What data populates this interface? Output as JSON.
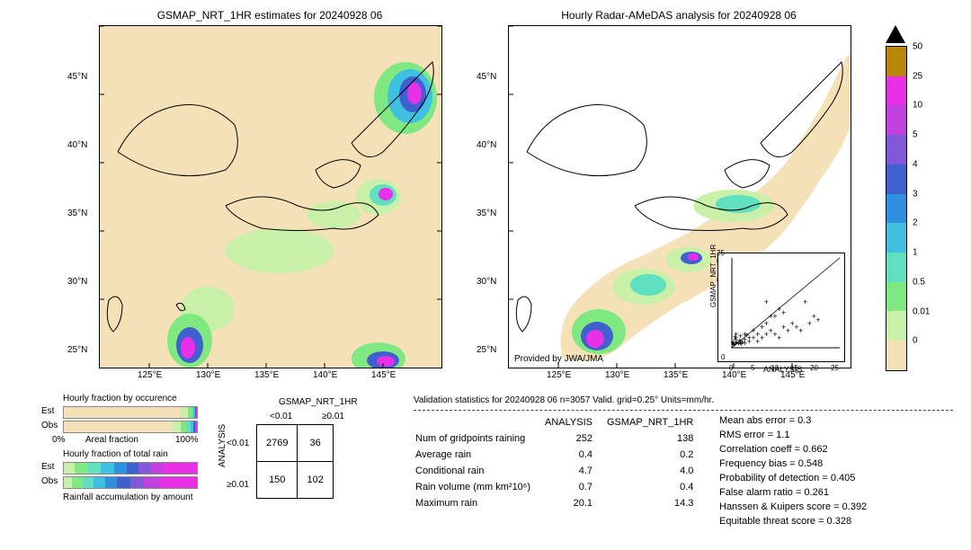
{
  "map_left": {
    "title": "GSMAP_NRT_1HR estimates for 20240928 06",
    "x_ticks": [
      "125°E",
      "130°E",
      "135°E",
      "140°E",
      "145°E"
    ],
    "y_ticks": [
      "25°N",
      "30°N",
      "35°N",
      "40°N",
      "45°N"
    ],
    "bg_color": "#f5e1b8"
  },
  "map_right": {
    "title": "Hourly Radar-AMeDAS analysis for 20240928 06",
    "x_ticks": [
      "125°E",
      "130°E",
      "135°E",
      "140°E",
      "145°E"
    ],
    "y_ticks": [
      "25°N",
      "30°N",
      "35°N",
      "40°N",
      "45°N"
    ],
    "footer": "Provided by JWA/JMA",
    "bg_color": "#ffffff",
    "coverage_color": "#f5e1b8"
  },
  "colorbar": {
    "segments": [
      {
        "color": "#000000",
        "is_triangle": true
      },
      {
        "color": "#b8860b"
      },
      {
        "color": "#e730e7"
      },
      {
        "color": "#c040e0"
      },
      {
        "color": "#8058d8"
      },
      {
        "color": "#4060d0"
      },
      {
        "color": "#3090e0"
      },
      {
        "color": "#40c0e0"
      },
      {
        "color": "#60e0c0"
      },
      {
        "color": "#80e880"
      },
      {
        "color": "#c8f0a8"
      },
      {
        "color": "#f5e1b8"
      }
    ],
    "ticks": [
      "50",
      "25",
      "10",
      "5",
      "4",
      "3",
      "2",
      "1",
      "0.5",
      "0.01",
      "0"
    ]
  },
  "fraction_charts": {
    "title1": "Hourly fraction by occurence",
    "title2": "Hourly fraction of total rain",
    "footer2": "Rainfall accumulation by amount",
    "x_axis_label": "Areal fraction",
    "x_min": "0%",
    "x_max": "100%",
    "row_label_est": "Est",
    "row_label_obs": "Obs",
    "occurrence_est": [
      {
        "color": "#f5e1b8",
        "pct": 88
      },
      {
        "color": "#c8f0a8",
        "pct": 5
      },
      {
        "color": "#80e880",
        "pct": 3
      },
      {
        "color": "#60e0c0",
        "pct": 1.5
      },
      {
        "color": "#40c0e0",
        "pct": 1
      },
      {
        "color": "#4060d0",
        "pct": 0.8
      },
      {
        "color": "#e730e7",
        "pct": 0.7
      }
    ],
    "occurrence_obs": [
      {
        "color": "#f5e1b8",
        "pct": 82
      },
      {
        "color": "#c8f0a8",
        "pct": 6
      },
      {
        "color": "#80e880",
        "pct": 4
      },
      {
        "color": "#60e0c0",
        "pct": 3
      },
      {
        "color": "#40c0e0",
        "pct": 2
      },
      {
        "color": "#4060d0",
        "pct": 1.5
      },
      {
        "color": "#e730e7",
        "pct": 1.5
      }
    ],
    "totalrain_est": [
      {
        "color": "#c8f0a8",
        "pct": 8
      },
      {
        "color": "#80e880",
        "pct": 10
      },
      {
        "color": "#60e0c0",
        "pct": 10
      },
      {
        "color": "#40c0e0",
        "pct": 10
      },
      {
        "color": "#3090e0",
        "pct": 9
      },
      {
        "color": "#4060d0",
        "pct": 9
      },
      {
        "color": "#8058d8",
        "pct": 9
      },
      {
        "color": "#c040e0",
        "pct": 10
      },
      {
        "color": "#e730e7",
        "pct": 25
      }
    ],
    "totalrain_obs": [
      {
        "color": "#c8f0a8",
        "pct": 6
      },
      {
        "color": "#80e880",
        "pct": 8
      },
      {
        "color": "#60e0c0",
        "pct": 8
      },
      {
        "color": "#40c0e0",
        "pct": 9
      },
      {
        "color": "#3090e0",
        "pct": 9
      },
      {
        "color": "#4060d0",
        "pct": 10
      },
      {
        "color": "#8058d8",
        "pct": 10
      },
      {
        "color": "#c040e0",
        "pct": 12
      },
      {
        "color": "#e730e7",
        "pct": 28
      }
    ]
  },
  "contingency": {
    "col_header": "GSMAP_NRT_1HR",
    "row_header": "ANALYSIS",
    "col_labels": [
      "<0.01",
      "≥0.01"
    ],
    "row_labels": [
      "<0.01",
      "≥0.01"
    ],
    "cells": [
      [
        "2769",
        "36"
      ],
      [
        "150",
        "102"
      ]
    ]
  },
  "validation": {
    "header": "Validation statistics for 20240928 06  n=3057 Valid. grid=0.25° Units=mm/hr.",
    "col_headers": [
      "",
      "ANALYSIS",
      "GSMAP_NRT_1HR"
    ],
    "rows": [
      {
        "label": "Num of gridpoints raining",
        "analysis": "252",
        "gsmap": "138"
      },
      {
        "label": "Average rain",
        "analysis": "0.4",
        "gsmap": "0.2"
      },
      {
        "label": "Conditional rain",
        "analysis": "4.7",
        "gsmap": "4.0"
      },
      {
        "label": "Rain volume (mm km²10⁶)",
        "analysis": "0.7",
        "gsmap": "0.4"
      },
      {
        "label": "Maximum rain",
        "analysis": "20.1",
        "gsmap": "14.3"
      }
    ]
  },
  "scores": [
    {
      "label": "Mean abs error =",
      "value": "0.3"
    },
    {
      "label": "RMS error =",
      "value": "1.1"
    },
    {
      "label": "Correlation coeff =",
      "value": "0.662"
    },
    {
      "label": "Frequency bias =",
      "value": "0.548"
    },
    {
      "label": "Probability of detection =",
      "value": "0.405"
    },
    {
      "label": "False alarm ratio =",
      "value": "0.261"
    },
    {
      "label": "Hanssen & Kuipers score =",
      "value": "0.392"
    },
    {
      "label": "Equitable threat score =",
      "value": "0.328"
    }
  ],
  "scatter": {
    "xlabel": "ANALYSIS",
    "ylabel": "GSMAP_NRT_1HR",
    "xlim": [
      0,
      25
    ],
    "ylim": [
      0,
      25
    ],
    "ticks": [
      "0",
      "5",
      "10",
      "15",
      "20",
      "25"
    ],
    "points": [
      [
        0.5,
        0.3
      ],
      [
        1,
        0.5
      ],
      [
        1.5,
        0.4
      ],
      [
        2,
        1
      ],
      [
        1,
        2
      ],
      [
        3,
        1.5
      ],
      [
        2.5,
        0.8
      ],
      [
        4,
        2
      ],
      [
        3,
        3
      ],
      [
        5,
        2
      ],
      [
        2,
        0.5
      ],
      [
        0.8,
        1.5
      ],
      [
        1.2,
        0.7
      ],
      [
        6,
        3
      ],
      [
        4,
        1
      ],
      [
        7,
        2
      ],
      [
        5,
        4
      ],
      [
        8,
        3
      ],
      [
        3,
        0.5
      ],
      [
        1,
        3
      ],
      [
        0.3,
        0.8
      ],
      [
        0.6,
        0.2
      ],
      [
        2,
        2.5
      ],
      [
        9,
        4
      ],
      [
        10,
        3
      ],
      [
        12,
        5
      ],
      [
        8,
        6
      ],
      [
        11,
        2
      ],
      [
        6,
        1
      ],
      [
        7,
        5
      ],
      [
        13,
        4
      ],
      [
        14,
        6
      ],
      [
        10,
        8
      ],
      [
        15,
        5
      ],
      [
        12,
        9
      ],
      [
        16,
        4
      ],
      [
        18,
        6
      ],
      [
        11,
        10
      ],
      [
        9,
        8
      ],
      [
        17,
        12
      ],
      [
        0.2,
        0.5
      ],
      [
        0.4,
        0.1
      ],
      [
        1.8,
        1.2
      ],
      [
        2.2,
        0.3
      ],
      [
        3.5,
        2.8
      ],
      [
        0.7,
        2.2
      ],
      [
        19,
        8
      ],
      [
        20,
        7
      ],
      [
        8,
        12
      ]
    ]
  }
}
